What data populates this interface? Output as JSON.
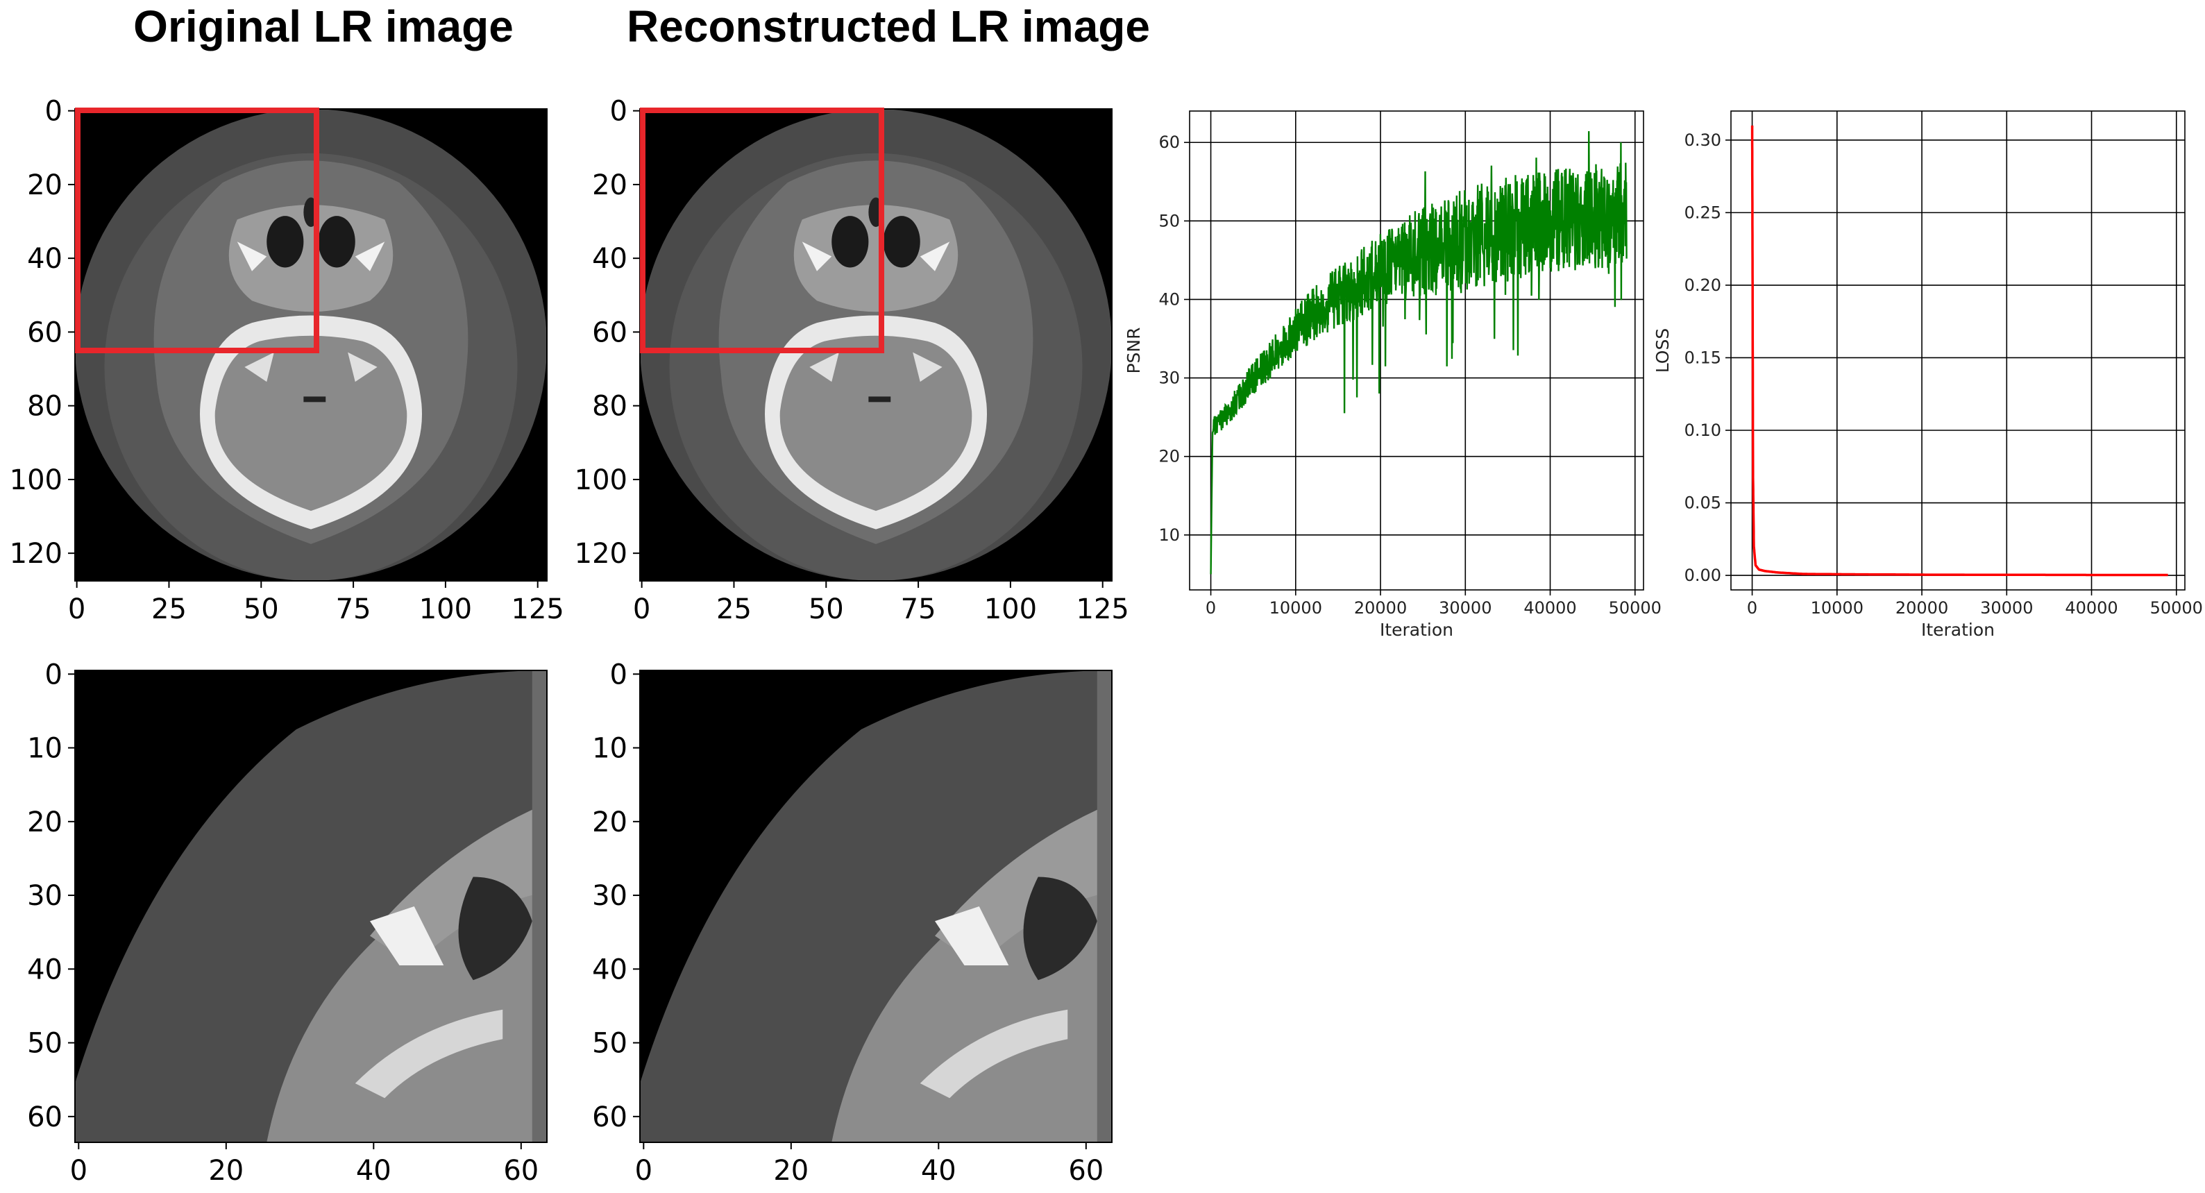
{
  "titles": {
    "original": "Original LR image",
    "reconstructed": "Reconstructed LR image"
  },
  "images": {
    "full_ticks_x": [
      "0",
      "25",
      "50",
      "75",
      "100",
      "125"
    ],
    "full_ticks_y": [
      "0",
      "20",
      "40",
      "60",
      "80",
      "100",
      "120"
    ],
    "crop_ticks_x": [
      "0",
      "20",
      "40",
      "60"
    ],
    "crop_ticks_y": [
      "0",
      "10",
      "20",
      "30",
      "40",
      "50",
      "60"
    ],
    "highlight_color": "#e8262b"
  },
  "chart_data": [
    {
      "type": "line",
      "xlabel": "Iteration",
      "ylabel": "PSNR",
      "color": "#008000",
      "xlim": [
        -2500,
        51000
      ],
      "ylim": [
        3,
        64
      ],
      "xticks": [
        0,
        10000,
        20000,
        30000,
        40000,
        50000
      ],
      "yticks": [
        10,
        20,
        30,
        40,
        50,
        60
      ],
      "grid": true,
      "series": [
        {
          "x": [
            0,
            200,
            500,
            1000,
            2000,
            3000,
            5000,
            7500,
            10000,
            12500,
            15000,
            17500,
            20000,
            25000,
            30000,
            35000,
            40000,
            45000,
            49000
          ],
          "y": [
            5,
            23,
            24,
            24.5,
            25.5,
            27,
            30,
            33,
            36,
            38.5,
            40.5,
            42,
            44,
            46,
            47.5,
            49,
            50,
            50.5,
            51
          ]
        }
      ]
    },
    {
      "type": "line",
      "xlabel": "Iteration",
      "ylabel": "LOSS",
      "color": "#ff0000",
      "xlim": [
        -2500,
        51000
      ],
      "ylim": [
        -0.01,
        0.32
      ],
      "xticks": [
        0,
        10000,
        20000,
        30000,
        40000,
        50000
      ],
      "yticks": [
        0.0,
        0.05,
        0.1,
        0.15,
        0.2,
        0.25,
        0.3
      ],
      "grid": true,
      "series": [
        {
          "x": [
            0,
            50,
            100,
            200,
            400,
            800,
            1500,
            3000,
            6000,
            10000,
            20000,
            30000,
            40000,
            49000
          ],
          "y": [
            0.31,
            0.2,
            0.07,
            0.02,
            0.007,
            0.004,
            0.003,
            0.002,
            0.001,
            0.0008,
            0.0005,
            0.0004,
            0.0003,
            0.0003
          ]
        }
      ]
    }
  ]
}
